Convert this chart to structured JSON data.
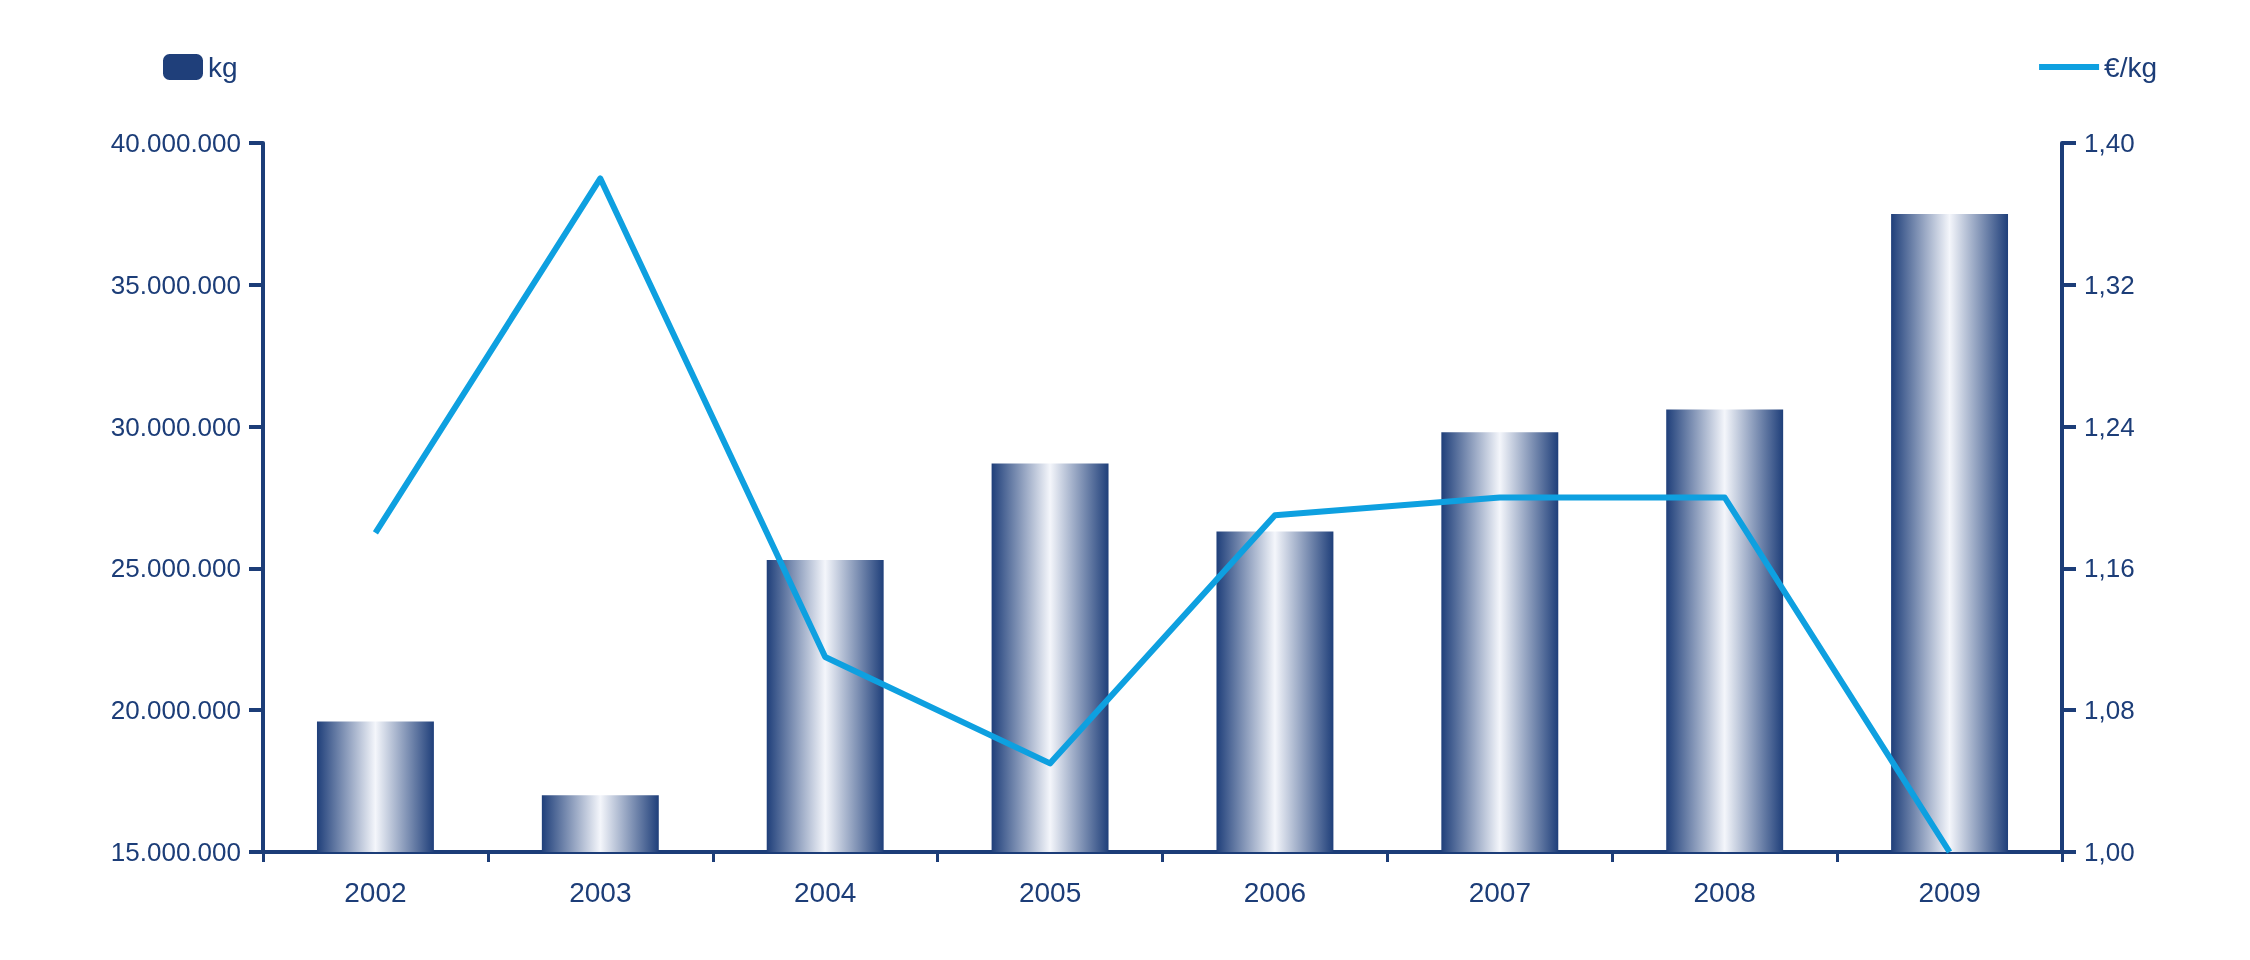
{
  "chart_data": {
    "type": "bar",
    "categories": [
      "2002",
      "2003",
      "2004",
      "2005",
      "2006",
      "2007",
      "2008",
      "2009"
    ],
    "series": [
      {
        "name": "kg",
        "color": "#1f3f7a",
        "values": [
          19600000,
          17000000,
          25300000,
          28700000,
          26300000,
          29800000,
          30600000,
          37500000
        ]
      },
      {
        "name": "€/kg",
        "type": "line",
        "axis": "y2",
        "color": "#0ea0e0",
        "values": [
          1.18,
          1.38,
          1.11,
          1.05,
          1.19,
          1.2,
          1.2,
          1.0
        ]
      }
    ],
    "ylim": [
      15000000,
      40000000
    ],
    "yticks": [
      {
        "value": 15000000,
        "label": "15.000.000"
      },
      {
        "value": 20000000,
        "label": "20.000.000"
      },
      {
        "value": 25000000,
        "label": "25.000.000"
      },
      {
        "value": 30000000,
        "label": "30.000.000"
      },
      {
        "value": 35000000,
        "label": "35.000.000"
      },
      {
        "value": 40000000,
        "label": "40.000.000"
      }
    ],
    "y2lim": [
      1.0,
      1.4
    ],
    "y2ticks": [
      {
        "value": 1.0,
        "label": "1,00"
      },
      {
        "value": 1.08,
        "label": "1,08"
      },
      {
        "value": 1.16,
        "label": "1,16"
      },
      {
        "value": 1.24,
        "label": "1,24"
      },
      {
        "value": 1.32,
        "label": "1,32"
      },
      {
        "value": 1.4,
        "label": "1,40"
      }
    ],
    "grid": false,
    "legend": "top",
    "marker": "none"
  }
}
